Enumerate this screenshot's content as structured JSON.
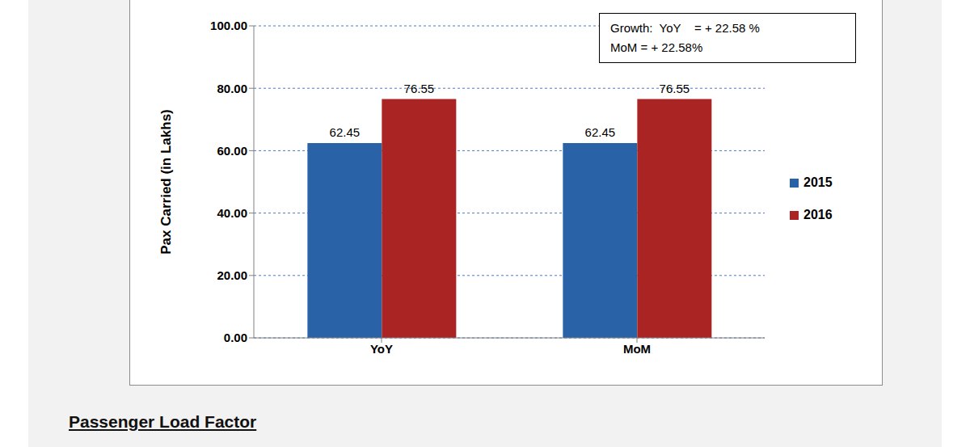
{
  "chart_data": {
    "type": "bar",
    "y_label": "Pax Carried (in Lakhs)",
    "categories": [
      "YoY",
      "MoM"
    ],
    "series": [
      {
        "name": "2015",
        "color": "#2a62a8",
        "values": [
          62.45,
          62.45
        ]
      },
      {
        "name": "2016",
        "color": "#ab2424",
        "values": [
          76.55,
          76.55
        ]
      }
    ],
    "ylim": [
      0,
      100
    ],
    "yticks": [
      {
        "value": 0,
        "label": "0.00"
      },
      {
        "value": 20,
        "label": "20.00"
      },
      {
        "value": 40,
        "label": "40.00"
      },
      {
        "value": 60,
        "label": "60.00"
      },
      {
        "value": 80,
        "label": "80.00"
      },
      {
        "value": 100,
        "label": "100.00"
      }
    ],
    "grid": true,
    "legend": "right",
    "data_labels": true,
    "annotations": [
      "Growth:  YoY    = + 22.58 %",
      "MoM = + 22.58%"
    ],
    "section_heading": "Passenger Load Factor"
  }
}
